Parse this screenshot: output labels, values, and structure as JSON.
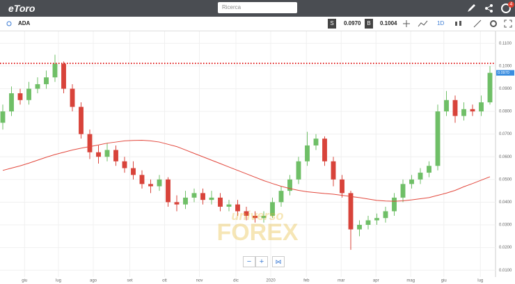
{
  "header": {
    "logo": "eToro",
    "search_placeholder": "Ricerca",
    "notification_count": "4"
  },
  "toolbar": {
    "instrument": "ADA",
    "sell_label": "S",
    "sell_price": "0.0970",
    "buy_label": "B",
    "buy_price": "0.1004",
    "timeframe": "1D"
  },
  "watermark": [
    "universo",
    "FOREX"
  ],
  "chart_data": {
    "type": "candlestick",
    "x": [
      0,
      1,
      2,
      3,
      4,
      5,
      6,
      7,
      8,
      9,
      10,
      11,
      12,
      13,
      14,
      15,
      16,
      17,
      18,
      19,
      20,
      21,
      22,
      23,
      24,
      25,
      26,
      27,
      28,
      29,
      30,
      31,
      32,
      33,
      34,
      35,
      36,
      37,
      38,
      39,
      40,
      41,
      42,
      43,
      44,
      45,
      46,
      47,
      48,
      49,
      50,
      51,
      52,
      53,
      54,
      55,
      56
    ],
    "open": [
      0.075,
      0.08,
      0.088,
      0.085,
      0.09,
      0.092,
      0.095,
      0.101,
      0.09,
      0.082,
      0.07,
      0.062,
      0.06,
      0.063,
      0.058,
      0.055,
      0.052,
      0.048,
      0.047,
      0.05,
      0.04,
      0.039,
      0.042,
      0.044,
      0.041,
      0.042,
      0.038,
      0.039,
      0.036,
      0.034,
      0.033,
      0.034,
      0.04,
      0.045,
      0.05,
      0.058,
      0.065,
      0.068,
      0.058,
      0.05,
      0.044,
      0.028,
      0.03,
      0.032,
      0.033,
      0.036,
      0.042,
      0.048,
      0.05,
      0.053,
      0.056,
      0.08,
      0.085,
      0.078,
      0.081,
      0.08,
      0.084
    ],
    "high": [
      0.083,
      0.091,
      0.09,
      0.093,
      0.095,
      0.098,
      0.105,
      0.102,
      0.092,
      0.084,
      0.072,
      0.065,
      0.066,
      0.065,
      0.06,
      0.058,
      0.054,
      0.05,
      0.052,
      0.051,
      0.043,
      0.045,
      0.046,
      0.046,
      0.045,
      0.044,
      0.041,
      0.041,
      0.038,
      0.036,
      0.036,
      0.042,
      0.047,
      0.052,
      0.06,
      0.071,
      0.07,
      0.069,
      0.06,
      0.052,
      0.045,
      0.032,
      0.034,
      0.035,
      0.038,
      0.044,
      0.05,
      0.052,
      0.055,
      0.058,
      0.083,
      0.089,
      0.087,
      0.084,
      0.083,
      0.087,
      0.1
    ],
    "low": [
      0.072,
      0.078,
      0.083,
      0.083,
      0.088,
      0.09,
      0.093,
      0.088,
      0.08,
      0.068,
      0.059,
      0.057,
      0.058,
      0.056,
      0.053,
      0.05,
      0.046,
      0.044,
      0.045,
      0.038,
      0.036,
      0.037,
      0.04,
      0.039,
      0.039,
      0.036,
      0.036,
      0.034,
      0.032,
      0.031,
      0.031,
      0.033,
      0.038,
      0.043,
      0.048,
      0.056,
      0.063,
      0.056,
      0.047,
      0.042,
      0.019,
      0.025,
      0.028,
      0.03,
      0.031,
      0.034,
      0.04,
      0.046,
      0.048,
      0.051,
      0.054,
      0.078,
      0.075,
      0.076,
      0.078,
      0.078,
      0.083
    ],
    "close": [
      0.08,
      0.088,
      0.085,
      0.09,
      0.092,
      0.095,
      0.101,
      0.09,
      0.082,
      0.07,
      0.062,
      0.06,
      0.063,
      0.058,
      0.055,
      0.052,
      0.048,
      0.047,
      0.05,
      0.04,
      0.039,
      0.042,
      0.044,
      0.041,
      0.042,
      0.038,
      0.039,
      0.036,
      0.034,
      0.033,
      0.034,
      0.04,
      0.045,
      0.05,
      0.058,
      0.065,
      0.068,
      0.058,
      0.05,
      0.044,
      0.028,
      0.03,
      0.032,
      0.033,
      0.036,
      0.042,
      0.048,
      0.05,
      0.053,
      0.056,
      0.08,
      0.085,
      0.078,
      0.081,
      0.08,
      0.084,
      0.097
    ],
    "up_color": "#6fbf67",
    "down_color": "#d8433a",
    "moving_average": {
      "color": "#e2473c",
      "values": [
        0.054,
        0.055,
        0.056,
        0.0572,
        0.0585,
        0.0598,
        0.061,
        0.062,
        0.063,
        0.0638,
        0.0645,
        0.0652,
        0.066,
        0.0665,
        0.067,
        0.0672,
        0.0673,
        0.067,
        0.0665,
        0.0655,
        0.0645,
        0.063,
        0.0615,
        0.06,
        0.0585,
        0.057,
        0.0555,
        0.054,
        0.0525,
        0.051,
        0.0495,
        0.0482,
        0.047,
        0.046,
        0.0452,
        0.0446,
        0.0442,
        0.0438,
        0.0435,
        0.043,
        0.0425,
        0.042,
        0.0414,
        0.0408,
        0.0405,
        0.0404,
        0.0406,
        0.041,
        0.0415,
        0.042,
        0.043,
        0.044,
        0.0452,
        0.0468,
        0.0482,
        0.0497,
        0.0512
      ]
    },
    "alert_level": 0.1012,
    "alert_color": "#e01f1f",
    "last_price": {
      "value": 0.097,
      "label": "0.0970"
    },
    "xlim": [
      -0.32,
      56.64
    ],
    "ylim": [
      0.007,
      0.1153
    ],
    "yticks": [
      {
        "value": 0.11,
        "label": "0.1100"
      },
      {
        "value": 0.1,
        "label": "0.1000"
      },
      {
        "value": 0.09,
        "label": "0.0900"
      },
      {
        "value": 0.08,
        "label": "0.0800"
      },
      {
        "value": 0.07,
        "label": "0.0700"
      },
      {
        "value": 0.06,
        "label": "0.0600"
      },
      {
        "value": 0.05,
        "label": "0.0500"
      },
      {
        "value": 0.04,
        "label": "0.0400"
      },
      {
        "value": 0.03,
        "label": "0.0300"
      },
      {
        "value": 0.02,
        "label": "0.0200"
      },
      {
        "value": 0.01,
        "label": "0.0100"
      }
    ],
    "xticks": [
      {
        "value": 2.5,
        "label": "giu"
      },
      {
        "value": 6.4,
        "label": "lug"
      },
      {
        "value": 10.4,
        "label": "ago"
      },
      {
        "value": 14.6,
        "label": "set"
      },
      {
        "value": 18.6,
        "label": "ott"
      },
      {
        "value": 22.6,
        "label": "nov"
      },
      {
        "value": 26.8,
        "label": "dic"
      },
      {
        "value": 30.8,
        "label": "2020"
      },
      {
        "value": 34.9,
        "label": "feb"
      },
      {
        "value": 38.9,
        "label": "mar"
      },
      {
        "value": 42.9,
        "label": "apr"
      },
      {
        "value": 46.9,
        "label": "mag"
      },
      {
        "value": 50.7,
        "label": "giu"
      },
      {
        "value": 54.9,
        "label": "lug"
      }
    ],
    "grid": true
  }
}
